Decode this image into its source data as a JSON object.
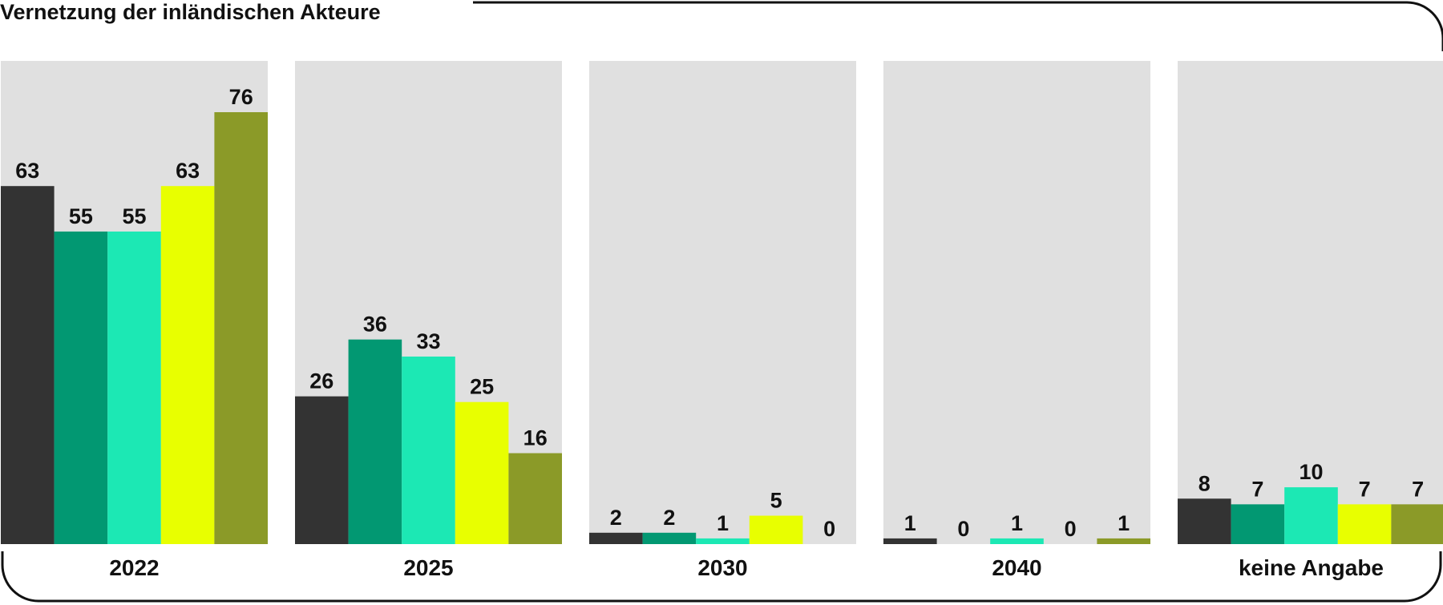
{
  "chart_data": {
    "type": "bar",
    "title": "Vernetzung der inländischen Akteure",
    "categories": [
      "2022",
      "2025",
      "2030",
      "2040",
      "keine Angabe"
    ],
    "series": [
      {
        "values": [
          63,
          26,
          2,
          1,
          8
        ],
        "color": "#333333"
      },
      {
        "values": [
          55,
          36,
          2,
          0,
          7
        ],
        "color": "#029872"
      },
      {
        "values": [
          55,
          33,
          1,
          1,
          10
        ],
        "color": "#1ce8b4"
      },
      {
        "values": [
          63,
          25,
          5,
          0,
          7
        ],
        "color": "#e8ff00"
      },
      {
        "values": [
          76,
          16,
          0,
          1,
          7
        ],
        "color": "#8b9a28"
      }
    ],
    "ylim": [
      0,
      85
    ],
    "grid": false,
    "panel_color": "#e0e0e0"
  }
}
